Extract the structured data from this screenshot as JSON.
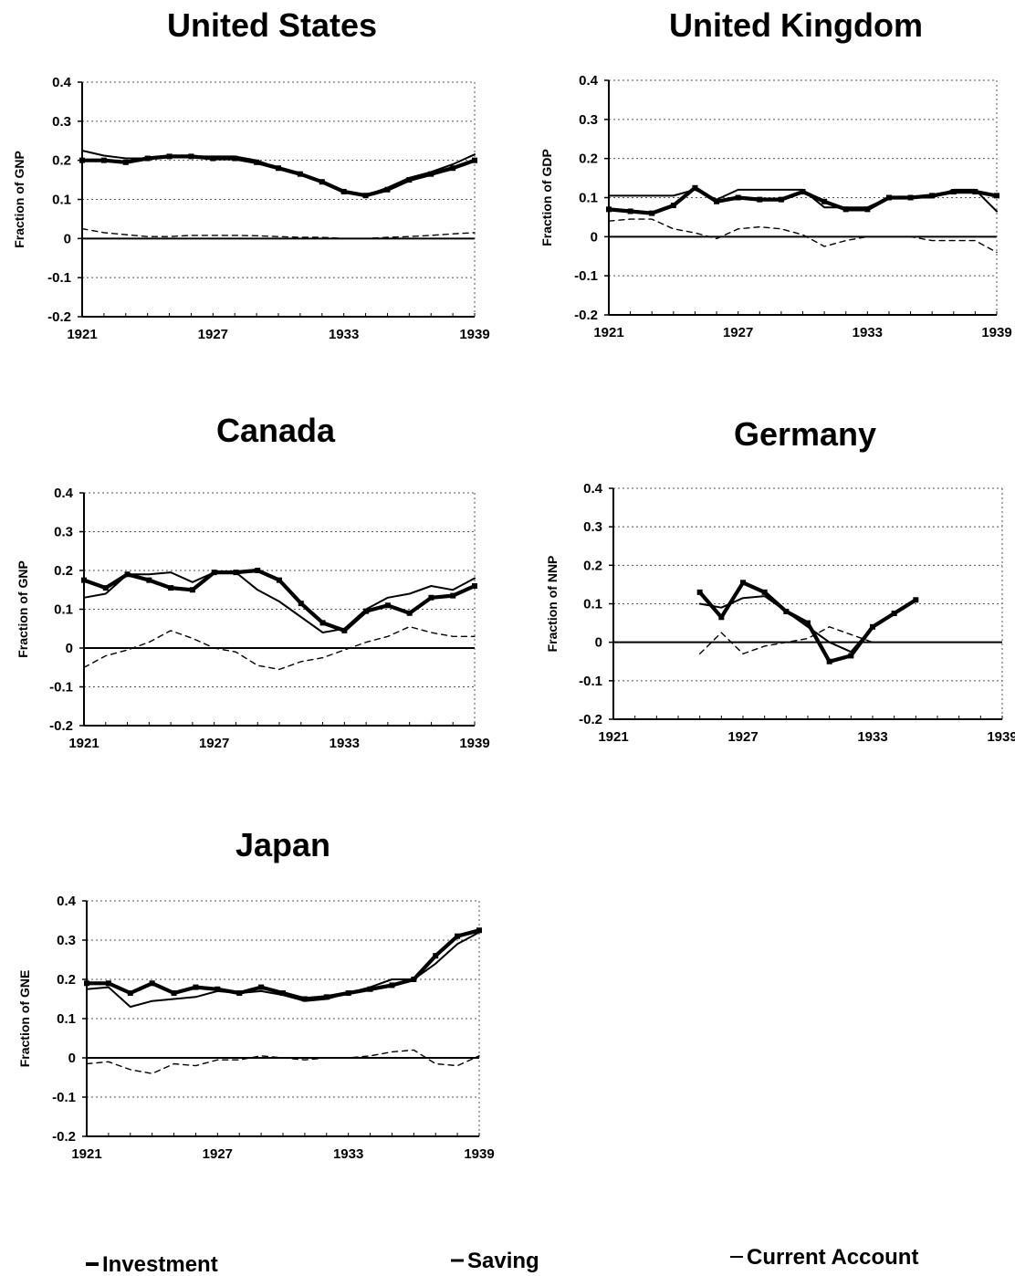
{
  "chart_data": [
    {
      "type": "line",
      "title": "United States",
      "ylabel": "Fraction of GNP",
      "xlim": [
        1921,
        1939
      ],
      "ylim": [
        -0.2,
        0.4
      ],
      "yticks": [
        "0.4",
        "0.3",
        "0.2",
        "0.1",
        "0",
        "-0.1",
        "-0.2"
      ],
      "xticks": [
        "1921",
        "1927",
        "1933",
        "1939"
      ],
      "x": [
        1921,
        1922,
        1923,
        1924,
        1925,
        1926,
        1927,
        1928,
        1929,
        1930,
        1931,
        1932,
        1933,
        1934,
        1935,
        1936,
        1937,
        1938,
        1939
      ],
      "series": [
        {
          "key": "investment",
          "values": [
            0.2,
            0.2,
            0.195,
            0.205,
            0.21,
            0.21,
            0.205,
            0.205,
            0.195,
            0.18,
            0.165,
            0.145,
            0.12,
            0.11,
            0.125,
            0.15,
            0.165,
            0.18,
            0.2
          ]
        },
        {
          "key": "saving",
          "values": [
            0.225,
            0.212,
            0.205,
            0.205,
            0.21,
            0.21,
            0.21,
            0.21,
            0.2,
            0.18,
            0.165,
            0.145,
            0.12,
            0.11,
            0.13,
            0.155,
            0.17,
            0.19,
            0.215
          ]
        },
        {
          "key": "current_account",
          "values": [
            0.025,
            0.015,
            0.01,
            0.005,
            0.005,
            0.008,
            0.008,
            0.008,
            0.007,
            0.005,
            0.003,
            0.003,
            0.0,
            0.0,
            0.003,
            0.005,
            0.008,
            0.012,
            0.015
          ]
        }
      ]
    },
    {
      "type": "line",
      "title": "United Kingdom",
      "ylabel": "Fraction of GDP",
      "xlim": [
        1921,
        1939
      ],
      "ylim": [
        -0.2,
        0.4
      ],
      "yticks": [
        "0.4",
        "0.3",
        "0.2",
        "0.1",
        "0",
        "-0.1",
        "-0.2"
      ],
      "xticks": [
        "1921",
        "1927",
        "1933",
        "1939"
      ],
      "x": [
        1921,
        1922,
        1923,
        1924,
        1925,
        1926,
        1927,
        1928,
        1929,
        1930,
        1931,
        1932,
        1933,
        1934,
        1935,
        1936,
        1937,
        1938,
        1939
      ],
      "series": [
        {
          "key": "investment",
          "values": [
            0.07,
            0.065,
            0.06,
            0.08,
            0.125,
            0.09,
            0.1,
            0.095,
            0.095,
            0.115,
            0.09,
            0.07,
            0.07,
            0.1,
            0.1,
            0.105,
            0.115,
            0.115,
            0.105
          ]
        },
        {
          "key": "saving",
          "values": [
            0.105,
            0.105,
            0.105,
            0.105,
            0.12,
            0.095,
            0.12,
            0.12,
            0.12,
            0.12,
            0.075,
            0.075,
            0.075,
            0.1,
            0.1,
            0.1,
            0.12,
            0.12,
            0.065
          ]
        },
        {
          "key": "current_account",
          "values": [
            0.04,
            0.045,
            0.045,
            0.02,
            0.01,
            -0.005,
            0.02,
            0.025,
            0.02,
            0.005,
            -0.025,
            -0.01,
            0.0,
            0.0,
            0.0,
            -0.01,
            -0.01,
            -0.01,
            -0.04
          ]
        }
      ]
    },
    {
      "type": "line",
      "title": "Canada",
      "ylabel": "Fraction of GNP",
      "xlim": [
        1921,
        1939
      ],
      "ylim": [
        -0.2,
        0.4
      ],
      "yticks": [
        "0.4",
        "0.3",
        "0.2",
        "0.1",
        "0",
        "-0.1",
        "-0.2"
      ],
      "xticks": [
        "1921",
        "1927",
        "1933",
        "1939"
      ],
      "x": [
        1921,
        1922,
        1923,
        1924,
        1925,
        1926,
        1927,
        1928,
        1929,
        1930,
        1931,
        1932,
        1933,
        1934,
        1935,
        1936,
        1937,
        1938,
        1939
      ],
      "series": [
        {
          "key": "investment",
          "values": [
            0.175,
            0.155,
            0.19,
            0.175,
            0.155,
            0.15,
            0.195,
            0.195,
            0.2,
            0.175,
            0.115,
            0.065,
            0.045,
            0.095,
            0.11,
            0.09,
            0.13,
            0.135,
            0.16
          ]
        },
        {
          "key": "saving",
          "values": [
            0.13,
            0.14,
            0.19,
            0.19,
            0.195,
            0.17,
            0.195,
            0.195,
            0.15,
            0.12,
            0.08,
            0.04,
            0.05,
            0.1,
            0.13,
            0.14,
            0.16,
            0.15,
            0.18
          ]
        },
        {
          "key": "current_account",
          "values": [
            -0.05,
            -0.02,
            -0.005,
            0.015,
            0.045,
            0.025,
            0.0,
            -0.01,
            -0.045,
            -0.055,
            -0.035,
            -0.025,
            -0.005,
            0.015,
            0.03,
            0.055,
            0.04,
            0.03,
            0.03
          ]
        }
      ]
    },
    {
      "type": "line",
      "title": "Germany",
      "ylabel": "Fraction of NNP",
      "xlim": [
        1921,
        1939
      ],
      "ylim": [
        -0.2,
        0.4
      ],
      "yticks": [
        "0.4",
        "0.3",
        "0.2",
        "0.1",
        "0",
        "-0.1",
        "-0.2"
      ],
      "xticks": [
        "1921",
        "1927",
        "1933",
        "1939"
      ],
      "x": [
        1925,
        1926,
        1927,
        1928,
        1929,
        1930,
        1931,
        1932,
        1933,
        1934,
        1935
      ],
      "series": [
        {
          "key": "investment",
          "values": [
            0.13,
            0.065,
            0.155,
            0.13,
            0.08,
            0.05,
            -0.05,
            -0.035,
            0.04,
            0.075,
            0.11
          ]
        },
        {
          "key": "saving",
          "values": [
            0.1,
            0.09,
            0.115,
            0.12,
            0.08,
            0.04,
            0.0,
            -0.025,
            0.04,
            0.075,
            0.11
          ]
        },
        {
          "key": "current_account",
          "values": [
            -0.03,
            0.025,
            -0.03,
            -0.01,
            0.0,
            0.01,
            0.04,
            0.02,
            0.0,
            0.0,
            0.0
          ]
        }
      ]
    },
    {
      "type": "line",
      "title": "Japan",
      "ylabel": "Fraction of GNE",
      "xlim": [
        1921,
        1939
      ],
      "ylim": [
        -0.2,
        0.4
      ],
      "yticks": [
        "0.4",
        "0.3",
        "0.2",
        "0.1",
        "0",
        "-0.1",
        "-0.2"
      ],
      "xticks": [
        "1921",
        "1927",
        "1933",
        "1939"
      ],
      "x": [
        1921,
        1922,
        1923,
        1924,
        1925,
        1926,
        1927,
        1928,
        1929,
        1930,
        1931,
        1932,
        1933,
        1934,
        1935,
        1936,
        1937,
        1938,
        1939
      ],
      "series": [
        {
          "key": "investment",
          "values": [
            0.19,
            0.19,
            0.165,
            0.19,
            0.165,
            0.18,
            0.175,
            0.165,
            0.18,
            0.165,
            0.15,
            0.155,
            0.165,
            0.175,
            0.185,
            0.2,
            0.26,
            0.31,
            0.325
          ]
        },
        {
          "key": "saving",
          "values": [
            0.175,
            0.18,
            0.13,
            0.145,
            0.15,
            0.155,
            0.17,
            0.165,
            0.17,
            0.16,
            0.145,
            0.15,
            0.165,
            0.18,
            0.2,
            0.2,
            0.24,
            0.29,
            0.32
          ]
        },
        {
          "key": "current_account",
          "values": [
            -0.015,
            -0.01,
            -0.03,
            -0.04,
            -0.015,
            -0.02,
            -0.005,
            -0.005,
            0.005,
            0.0,
            -0.005,
            0.0,
            0.0,
            0.005,
            0.015,
            0.02,
            -0.015,
            -0.02,
            0.005
          ]
        }
      ]
    }
  ],
  "legend": {
    "investment": "Investment",
    "saving": "Saving",
    "current_account": "Current Account"
  },
  "colors": {
    "ink": "#000000",
    "grid": "#555555",
    "background": "#ffffff"
  }
}
